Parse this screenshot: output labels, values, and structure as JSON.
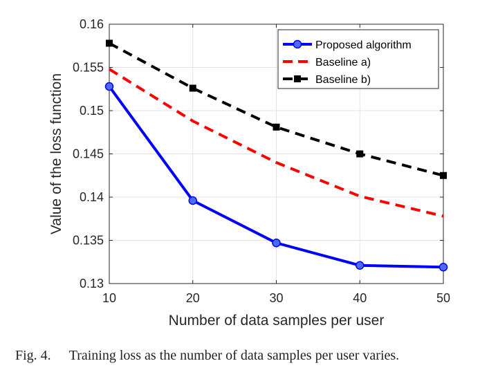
{
  "chart_data": {
    "type": "line",
    "xlabel": "Number of data samples per user",
    "ylabel": "Value of the loss function",
    "xlim": [
      10,
      50
    ],
    "ylim": [
      0.13,
      0.16
    ],
    "xticks": [
      "10",
      "20",
      "30",
      "40",
      "50"
    ],
    "yticks": [
      "0.13",
      "0.135",
      "0.14",
      "0.145",
      "0.15",
      "0.155",
      "0.16"
    ],
    "grid": true,
    "legend_position": "top-right",
    "x": [
      10,
      20,
      30,
      40,
      50
    ],
    "series": [
      {
        "name": "Proposed algorithm",
        "values": [
          0.1528,
          0.1396,
          0.1347,
          0.1321,
          0.1319
        ],
        "color": "#0000ff",
        "style": "solid",
        "marker": "circle"
      },
      {
        "name": "Baseline a)",
        "values": [
          0.1548,
          0.1488,
          0.144,
          0.1401,
          0.1378
        ],
        "color": "#ff0000",
        "style": "dashed",
        "marker": "none"
      },
      {
        "name": "Baseline b)",
        "values": [
          0.1578,
          0.1526,
          0.1481,
          0.145,
          0.1425
        ],
        "color": "#000000",
        "style": "dashed",
        "marker": "square"
      }
    ]
  },
  "caption": {
    "label": "Fig. 4.",
    "text": "Training loss as the number of data samples per user varies."
  }
}
